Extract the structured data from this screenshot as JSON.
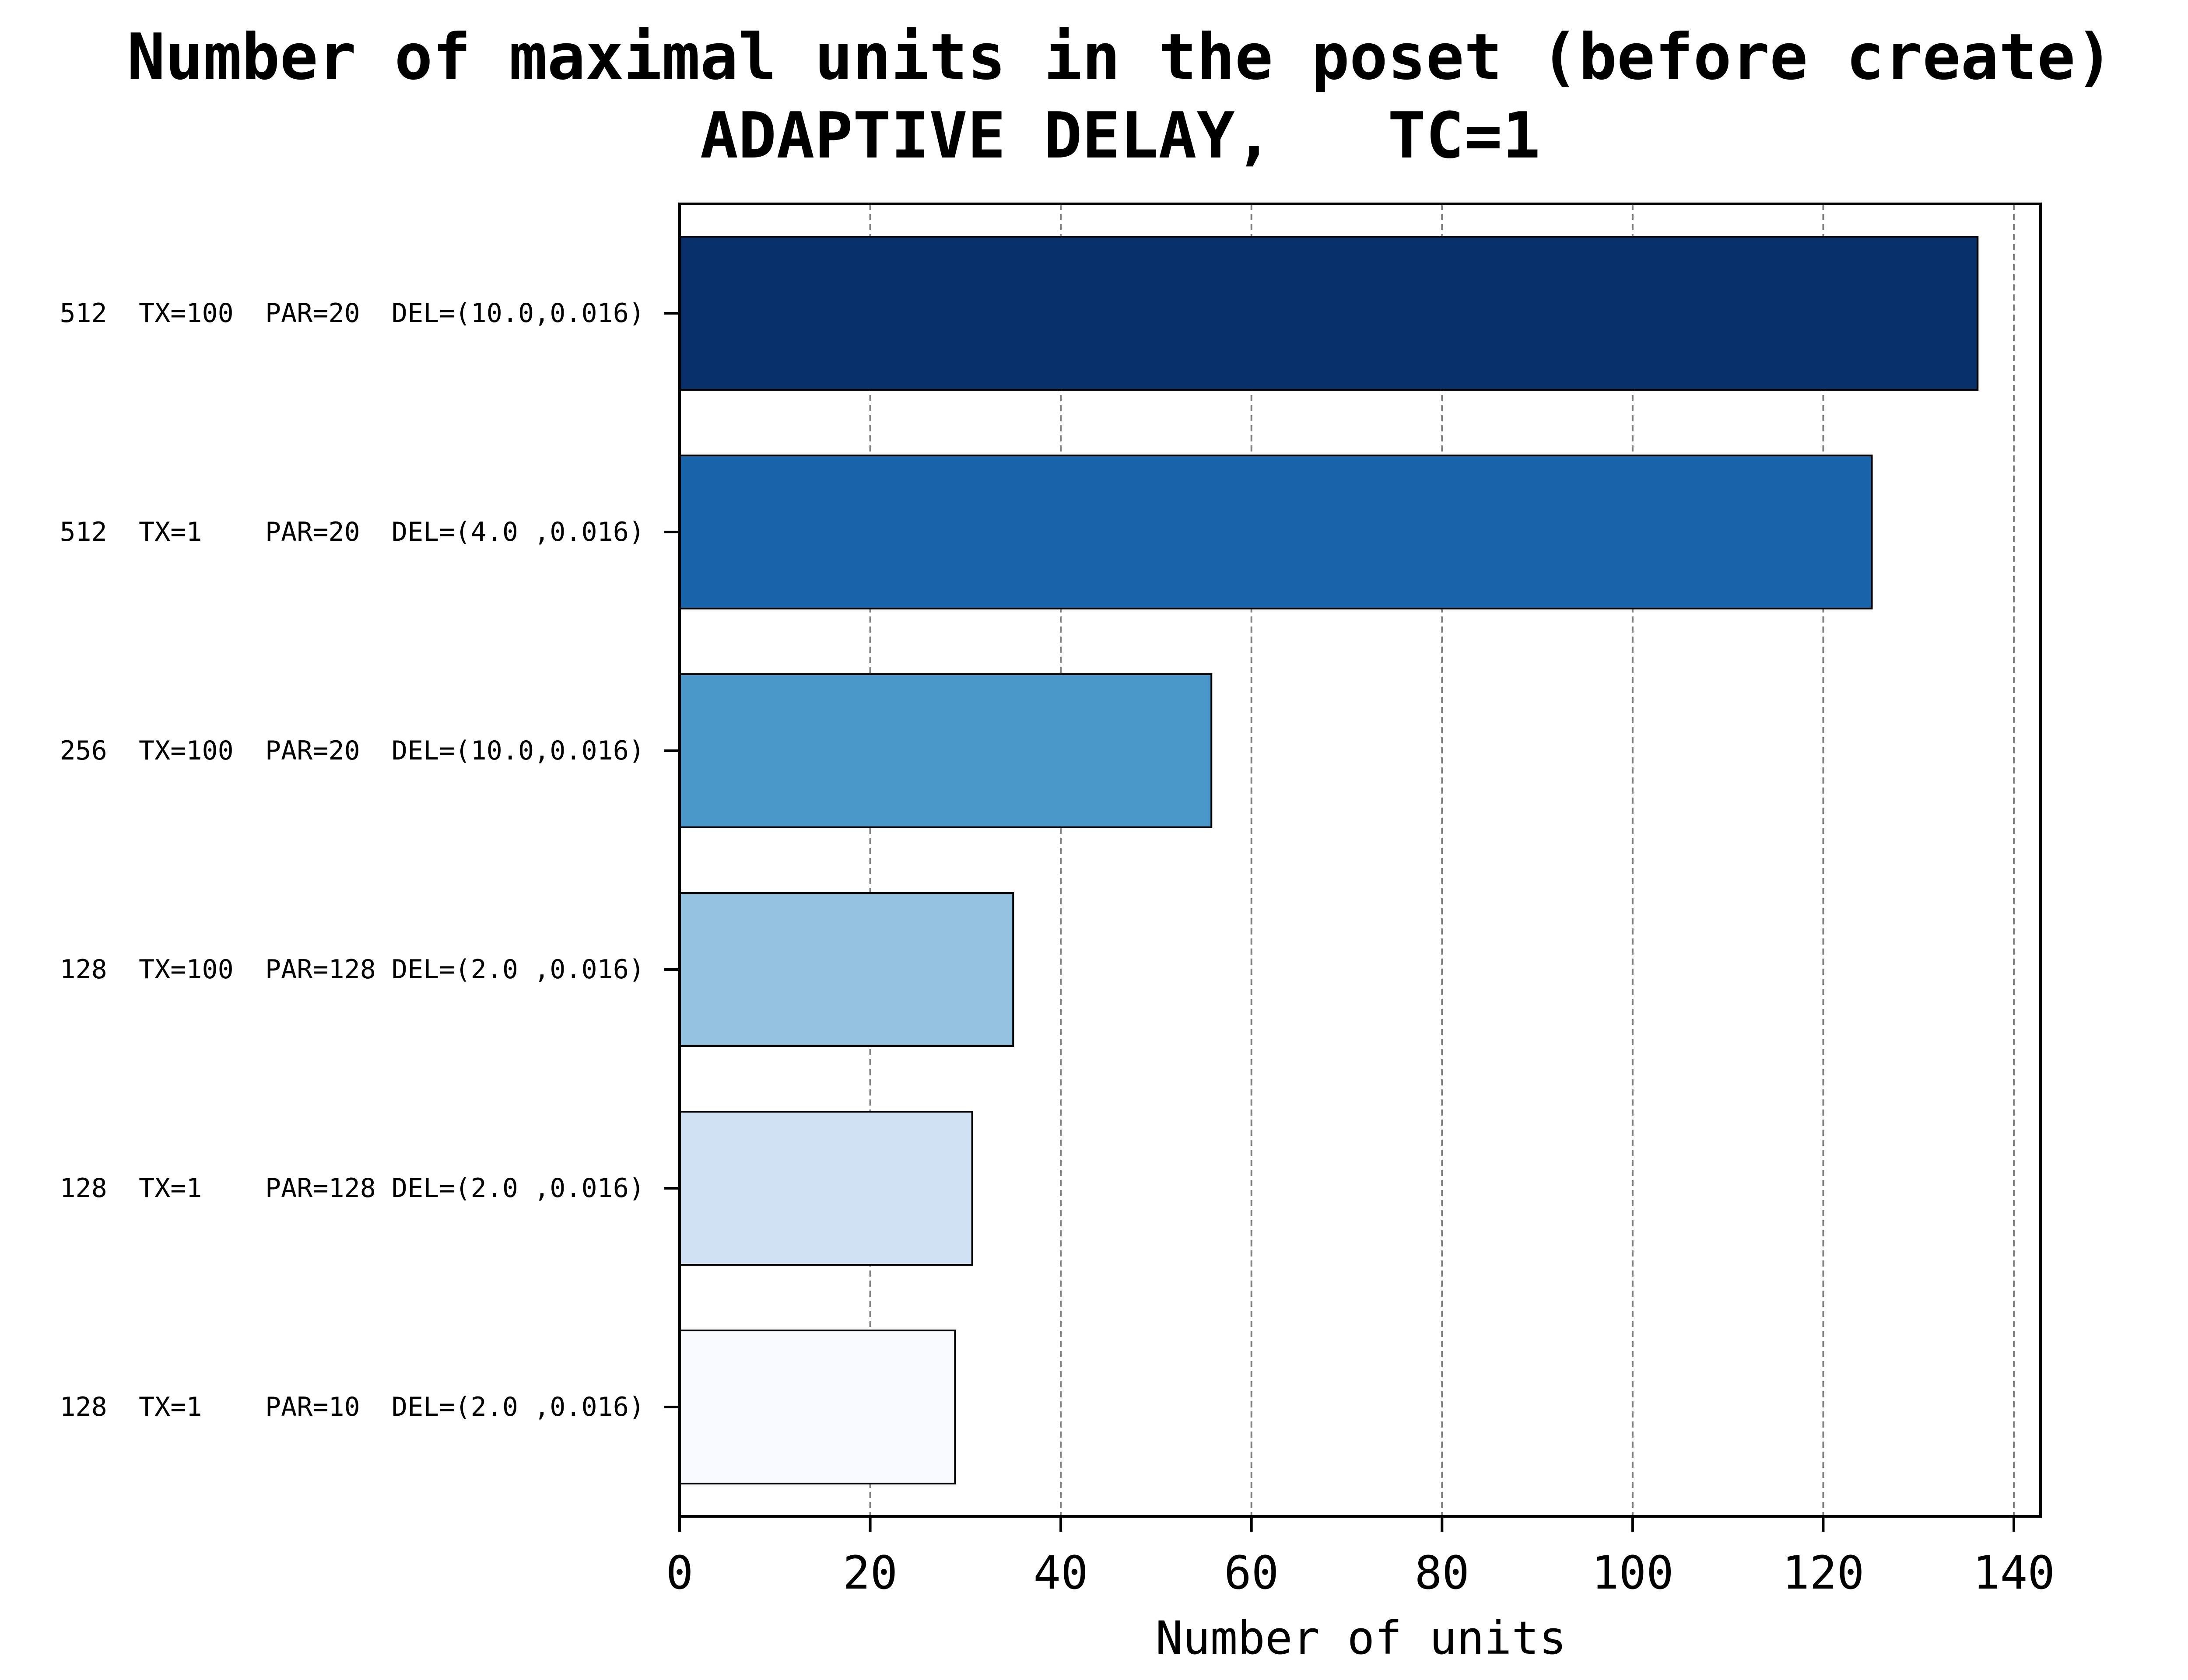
{
  "chart_data": {
    "type": "bar",
    "orientation": "horizontal",
    "title": "Number of maximal units in the poset (before create)",
    "subtitle": "ADAPTIVE DELAY,   TC=1",
    "xlabel": "Number of units",
    "ylabel": "",
    "xlim": [
      0,
      142.8
    ],
    "xticks": [
      0,
      20,
      40,
      60,
      80,
      100,
      120,
      140
    ],
    "grid": "x, dashed",
    "categories": [
      "512  TX=100  PAR=20  DEL=(10.0,0.016)",
      "512  TX=1    PAR=20  DEL=(4.0 ,0.016)",
      "256  TX=100  PAR=20  DEL=(10.0,0.016)",
      "128  TX=100  PAR=128 DEL=(2.0 ,0.016)",
      "128  TX=1    PAR=128 DEL=(2.0 ,0.016)",
      "128  TX=1    PAR=10  DEL=(2.0 ,0.016)"
    ],
    "values": [
      136.2,
      125.1,
      55.8,
      35.0,
      30.7,
      28.9
    ],
    "colors": [
      "#08306b",
      "#1865ab",
      "#4a98c9",
      "#94c4df",
      "#cfe1f2",
      "#f7fbff"
    ],
    "edge_color": "#000000",
    "grid_color": "#808080"
  }
}
